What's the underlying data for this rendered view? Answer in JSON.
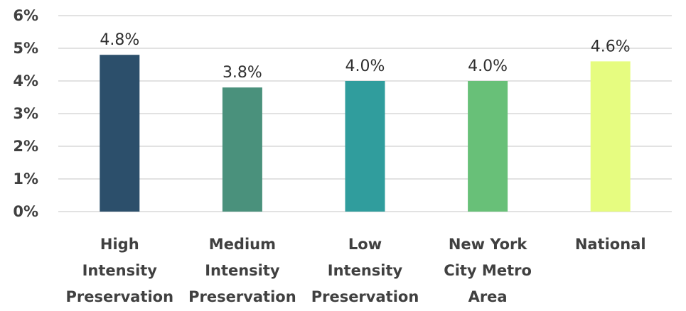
{
  "chart_data": {
    "type": "bar",
    "title": "",
    "xlabel": "",
    "ylabel": "",
    "ylim": [
      0,
      6
    ],
    "y_ticks": [
      0,
      1,
      2,
      3,
      4,
      5,
      6
    ],
    "y_tick_format": "percent",
    "grid": true,
    "legend": "none",
    "categories": [
      "High Intensity Preservation",
      "Medium Intensity Preservation",
      "Low Intensity Preservation",
      "New York City Metro Area",
      "National"
    ],
    "category_lines": [
      [
        "High",
        "Intensity",
        "Preservation"
      ],
      [
        "Medium",
        "Intensity",
        "Preservation"
      ],
      [
        "Low",
        "Intensity",
        "Preservation"
      ],
      [
        "New York",
        "City Metro",
        "Area"
      ],
      [
        "National"
      ]
    ],
    "values": [
      4.8,
      3.8,
      4.0,
      4.0,
      4.6
    ],
    "data_labels": [
      "4.8%",
      "3.8%",
      "4.0%",
      "4.0%",
      "4.6%"
    ],
    "colors": [
      "#2c4f6b",
      "#4a917c",
      "#309d9d",
      "#68c078",
      "#e6fc80"
    ]
  }
}
